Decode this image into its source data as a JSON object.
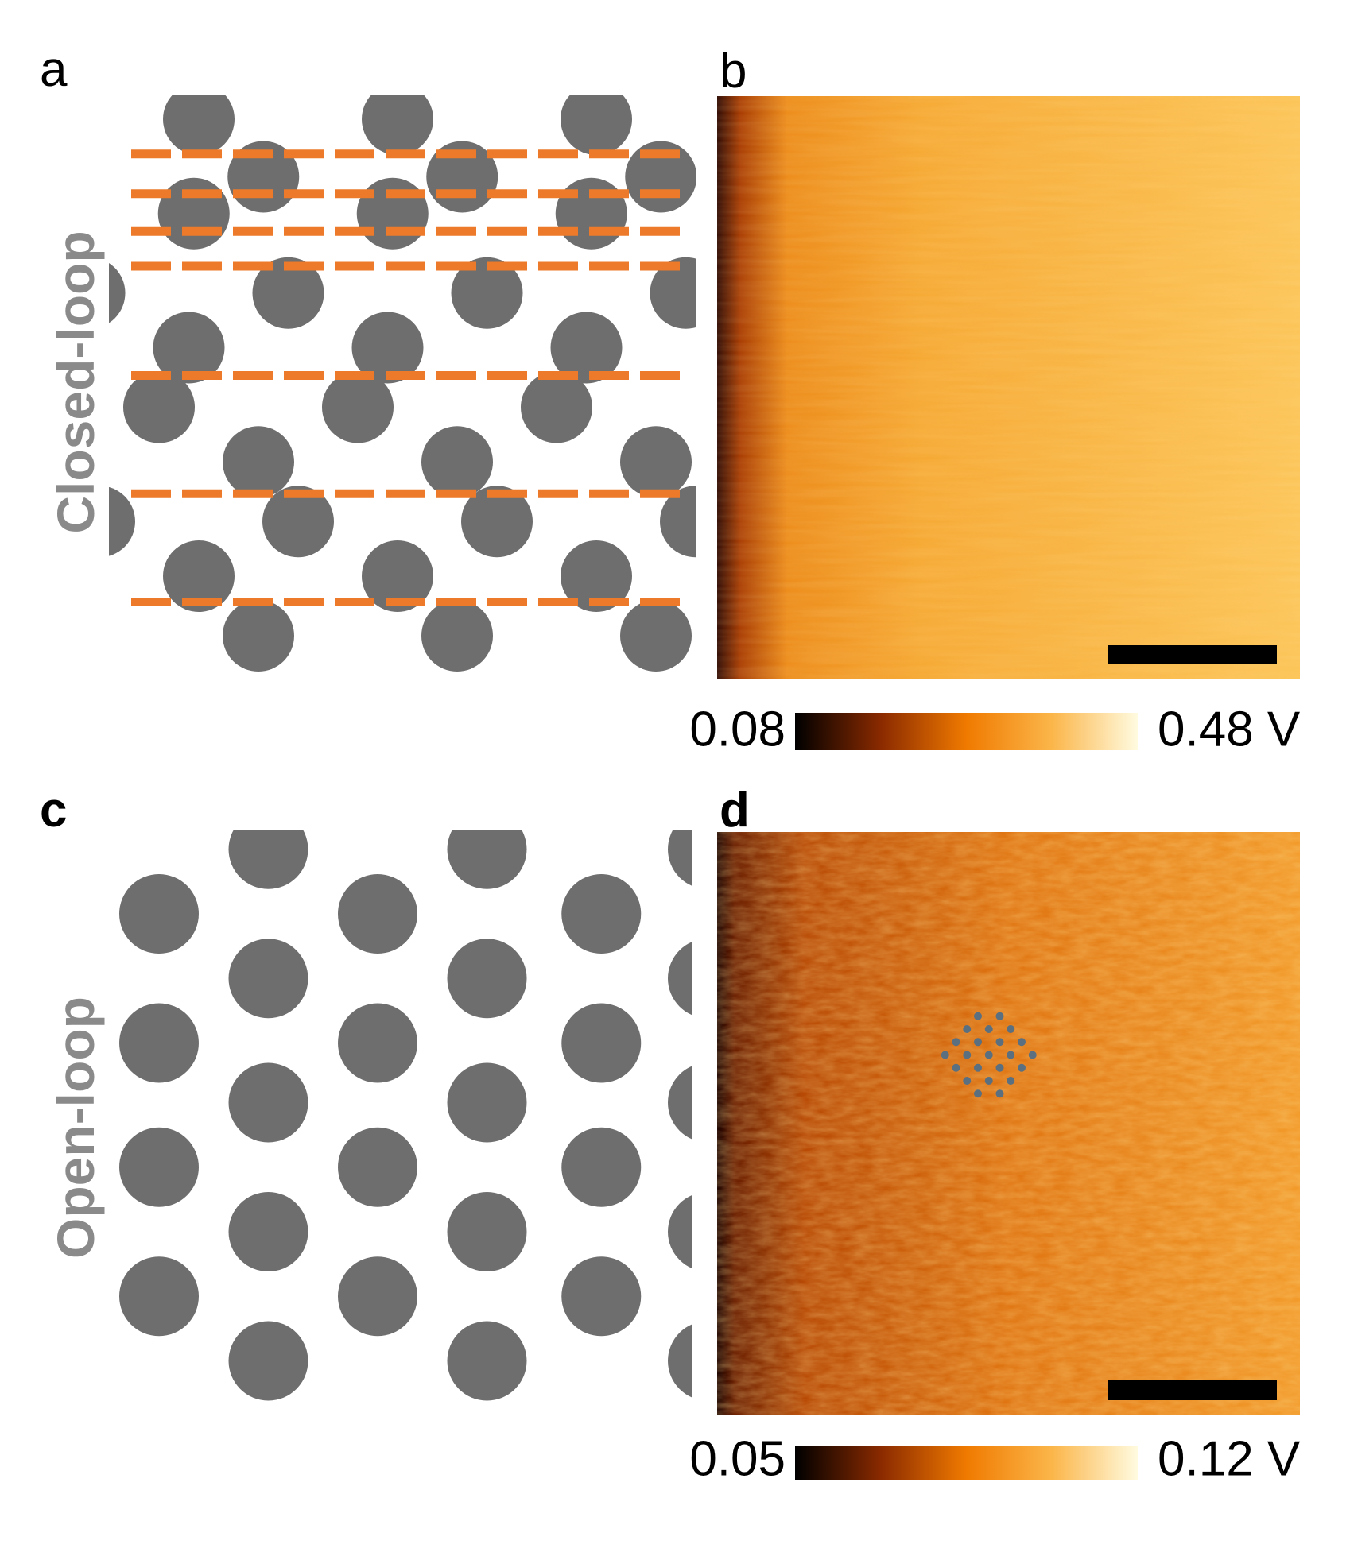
{
  "panel_labels": [
    "a",
    "b",
    "c",
    "d"
  ],
  "row_labels": [
    "Closed-loop",
    "Open-loop"
  ],
  "colorbars": [
    {
      "min_label": "0.08",
      "max_label": "0.48 V"
    },
    {
      "min_label": "0.05",
      "max_label": "0.12 V"
    }
  ]
}
